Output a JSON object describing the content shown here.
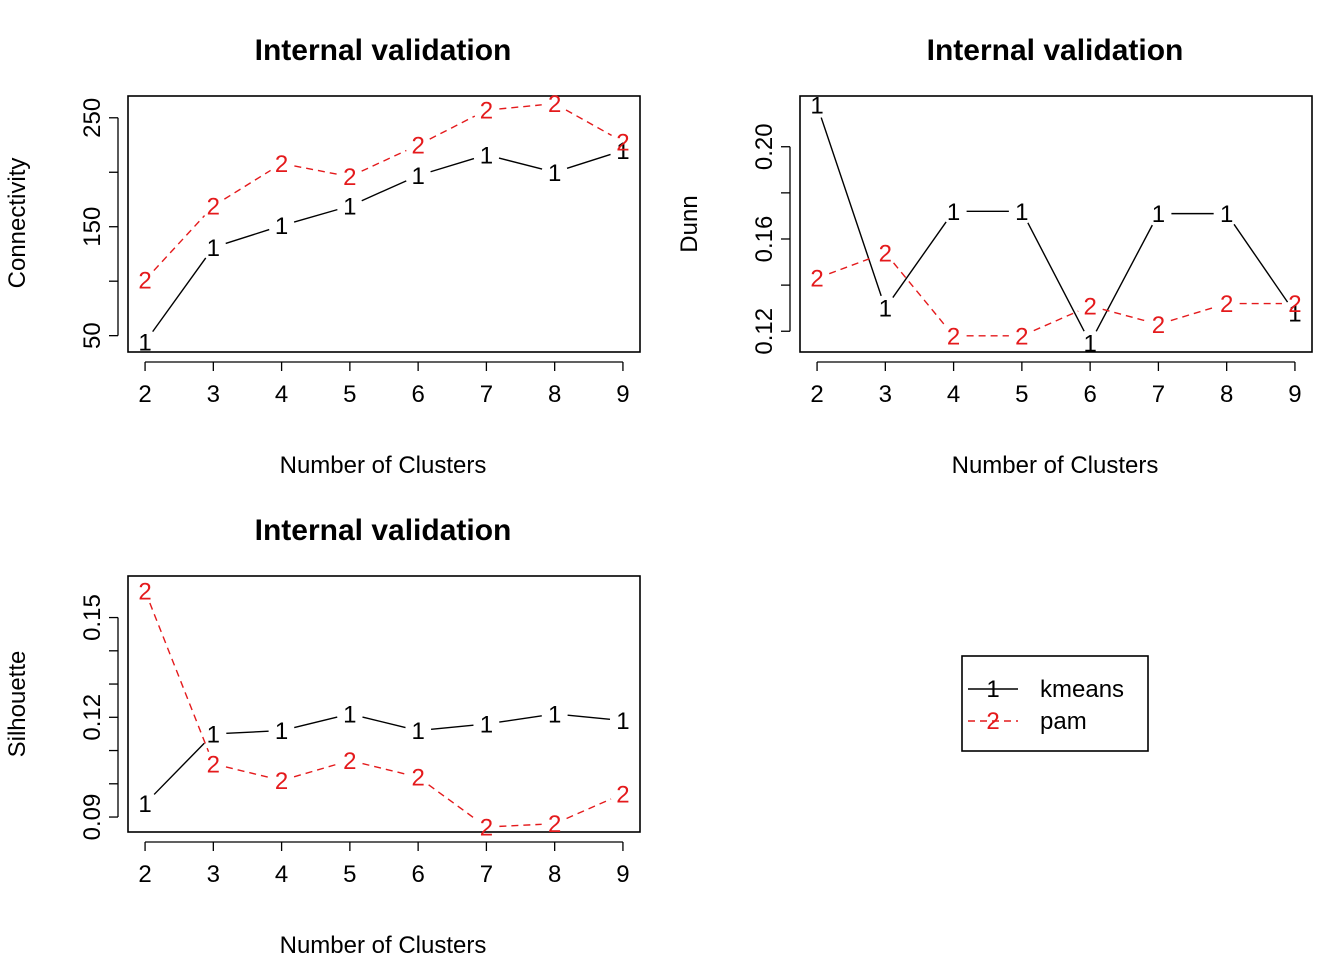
{
  "legend": {
    "entries": [
      {
        "name": "kmeans",
        "symbol": "1",
        "color": "#000000",
        "dash": "solid"
      },
      {
        "name": "pam",
        "symbol": "2",
        "color": "#e41a1c",
        "dash": "dashed"
      }
    ]
  },
  "chart_data": [
    {
      "type": "line",
      "title": "Internal validation",
      "xlabel": "Number of Clusters",
      "ylabel": "Connectivity",
      "x": [
        2,
        3,
        4,
        5,
        6,
        7,
        8,
        9
      ],
      "xlim": [
        1.75,
        9.25
      ],
      "ylim": [
        35,
        270
      ],
      "xticks": [
        "2",
        "3",
        "4",
        "5",
        "6",
        "7",
        "8",
        "9"
      ],
      "yticks": [
        50,
        100,
        150,
        200,
        250
      ],
      "ytick_labels": [
        "50",
        "",
        "150",
        "",
        "250"
      ],
      "series": [
        {
          "name": "kmeans",
          "symbol": "1",
          "color": "#000000",
          "dash": "solid",
          "values": [
            44,
            131,
            151,
            169,
            197,
            216,
            200,
            220
          ]
        },
        {
          "name": "pam",
          "symbol": "2",
          "color": "#e41a1c",
          "dash": "dashed",
          "values": [
            101,
            169,
            208,
            196,
            225,
            257,
            263,
            228
          ]
        }
      ]
    },
    {
      "type": "line",
      "title": "Internal validation",
      "xlabel": "Number of Clusters",
      "ylabel": "Dunn",
      "x": [
        2,
        3,
        4,
        5,
        6,
        7,
        8,
        9
      ],
      "xlim": [
        1.75,
        9.25
      ],
      "ylim": [
        0.111,
        0.222
      ],
      "xticks": [
        "2",
        "3",
        "4",
        "5",
        "6",
        "7",
        "8",
        "9"
      ],
      "yticks": [
        0.12,
        0.14,
        0.16,
        0.18,
        0.2
      ],
      "ytick_labels": [
        "0.12",
        "",
        "0.16",
        "",
        "0.20"
      ],
      "series": [
        {
          "name": "kmeans",
          "symbol": "1",
          "color": "#000000",
          "dash": "solid",
          "values": [
            0.218,
            0.13,
            0.172,
            0.172,
            0.115,
            0.171,
            0.171,
            0.128
          ]
        },
        {
          "name": "pam",
          "symbol": "2",
          "color": "#e41a1c",
          "dash": "dashed",
          "values": [
            0.143,
            0.154,
            0.118,
            0.118,
            0.131,
            0.123,
            0.132,
            0.132
          ]
        }
      ]
    },
    {
      "type": "line",
      "title": "Internal validation",
      "xlabel": "Number of Clusters",
      "ylabel": "Silhouette",
      "x": [
        2,
        3,
        4,
        5,
        6,
        7,
        8,
        9
      ],
      "xlim": [
        1.75,
        9.25
      ],
      "ylim": [
        0.0855,
        0.1625
      ],
      "xticks": [
        "2",
        "3",
        "4",
        "5",
        "6",
        "7",
        "8",
        "9"
      ],
      "yticks": [
        0.09,
        0.12,
        0.15
      ],
      "ytick_labels": [
        "0.09",
        "0.12",
        "0.15"
      ],
      "yticks_minor": [
        0.1,
        0.11,
        0.13,
        0.14
      ],
      "series": [
        {
          "name": "kmeans",
          "symbol": "1",
          "color": "#000000",
          "dash": "solid",
          "values": [
            0.094,
            0.115,
            0.116,
            0.121,
            0.116,
            0.118,
            0.121,
            0.119
          ]
        },
        {
          "name": "pam",
          "symbol": "2",
          "color": "#e41a1c",
          "dash": "dashed",
          "values": [
            0.158,
            0.106,
            0.101,
            0.107,
            0.102,
            0.087,
            0.088,
            0.097
          ]
        }
      ]
    }
  ]
}
